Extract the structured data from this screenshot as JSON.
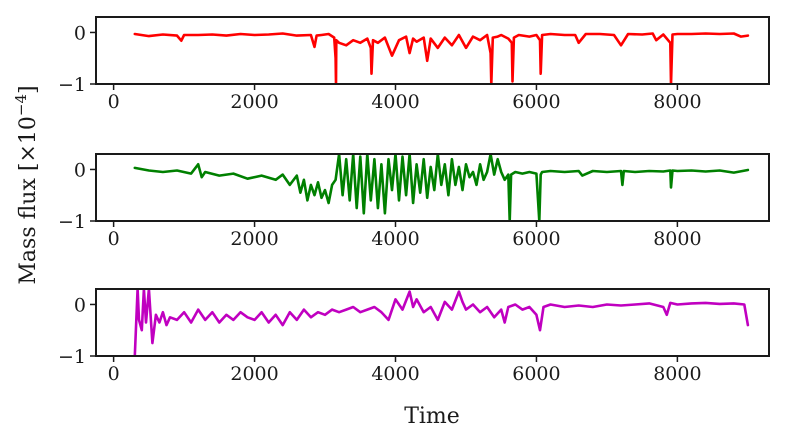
{
  "chart_data": [
    {
      "type": "line",
      "xlim": [
        -250,
        9300
      ],
      "ylim": [
        -1,
        0.3
      ],
      "xticks": [
        0,
        2000,
        4000,
        6000,
        8000
      ],
      "yticks": [
        0,
        -1
      ],
      "xtick_labels": [
        "0",
        "2000",
        "4000",
        "6000",
        "8000"
      ],
      "ytick_labels": [
        "0",
        "−1"
      ],
      "grid": false,
      "series": [
        {
          "color": "#ff0000",
          "x": [
            300,
            500,
            700,
            900,
            960,
            1000,
            1200,
            1400,
            1600,
            1800,
            2000,
            2200,
            2400,
            2600,
            2800,
            2850,
            2880,
            2950,
            3050,
            3130,
            3150,
            3155,
            3160,
            3200,
            3300,
            3400,
            3500,
            3600,
            3650,
            3660,
            3680,
            3750,
            3850,
            3950,
            4050,
            4150,
            4200,
            4250,
            4300,
            4400,
            4450,
            4500,
            4600,
            4700,
            4800,
            4900,
            5000,
            5100,
            5200,
            5300,
            5350,
            5360,
            5380,
            5450,
            5500,
            5600,
            5650,
            5660,
            5680,
            5750,
            5900,
            6000,
            6050,
            6060,
            6080,
            6200,
            6400,
            6550,
            6600,
            6700,
            6900,
            7100,
            7200,
            7300,
            7500,
            7650,
            7700,
            7800,
            7900,
            7910,
            7930,
            8000,
            8200,
            8400,
            8600,
            8800,
            8900,
            9000
          ],
          "y": [
            -0.03,
            -0.07,
            -0.04,
            -0.06,
            -0.16,
            -0.05,
            -0.05,
            -0.04,
            -0.06,
            -0.03,
            -0.05,
            -0.04,
            -0.02,
            -0.06,
            -0.05,
            -0.28,
            -0.06,
            -0.05,
            -0.03,
            -0.1,
            -0.5,
            -1.0,
            -0.15,
            -0.2,
            -0.25,
            -0.15,
            -0.2,
            -0.12,
            -0.3,
            -0.8,
            -0.15,
            -0.2,
            -0.1,
            -0.45,
            -0.15,
            -0.08,
            -0.4,
            -0.12,
            -0.18,
            -0.1,
            -0.55,
            -0.12,
            -0.3,
            -0.1,
            -0.25,
            -0.05,
            -0.3,
            -0.08,
            -0.15,
            -0.05,
            -0.4,
            -1.0,
            -0.1,
            -0.08,
            -0.05,
            -0.12,
            -0.2,
            -0.95,
            -0.1,
            -0.05,
            -0.08,
            -0.05,
            -0.15,
            -0.8,
            -0.05,
            -0.03,
            -0.05,
            -0.05,
            -0.2,
            -0.03,
            -0.03,
            -0.05,
            -0.25,
            -0.03,
            -0.04,
            -0.02,
            -0.15,
            -0.04,
            -0.2,
            -1.0,
            -0.04,
            -0.03,
            -0.03,
            -0.02,
            -0.03,
            -0.02,
            -0.08,
            -0.06
          ]
        }
      ]
    },
    {
      "type": "line",
      "xlim": [
        -250,
        9300
      ],
      "ylim": [
        -1,
        0.3
      ],
      "xticks": [
        0,
        2000,
        4000,
        6000,
        8000
      ],
      "yticks": [
        0,
        -1
      ],
      "xtick_labels": [
        "0",
        "2000",
        "4000",
        "6000",
        "8000"
      ],
      "ytick_labels": [
        "0",
        "−1"
      ],
      "grid": false,
      "series": [
        {
          "color": "#008000",
          "x": [
            300,
            500,
            700,
            900,
            1100,
            1200,
            1250,
            1300,
            1500,
            1700,
            1900,
            2100,
            2300,
            2400,
            2500,
            2600,
            2650,
            2700,
            2750,
            2800,
            2850,
            2900,
            2950,
            3000,
            3050,
            3100,
            3150,
            3200,
            3250,
            3300,
            3350,
            3400,
            3450,
            3500,
            3550,
            3600,
            3650,
            3700,
            3750,
            3800,
            3850,
            3900,
            3950,
            4000,
            4050,
            4100,
            4150,
            4200,
            4250,
            4300,
            4350,
            4400,
            4450,
            4500,
            4550,
            4600,
            4650,
            4700,
            4750,
            4800,
            4850,
            4900,
            4950,
            5000,
            5050,
            5100,
            5150,
            5200,
            5250,
            5300,
            5350,
            5400,
            5450,
            5500,
            5550,
            5600,
            5620,
            5640,
            5700,
            5800,
            5900,
            6000,
            6040,
            6060,
            6080,
            6200,
            6400,
            6600,
            6650,
            6800,
            7000,
            7200,
            7220,
            7240,
            7400,
            7600,
            7800,
            7900,
            7910,
            7930,
            8000,
            8200,
            8400,
            8600,
            8800,
            9000
          ],
          "y": [
            0.03,
            -0.02,
            -0.05,
            -0.02,
            -0.08,
            0.1,
            -0.15,
            -0.05,
            -0.12,
            -0.08,
            -0.18,
            -0.12,
            -0.2,
            -0.1,
            -0.3,
            -0.12,
            -0.45,
            -0.2,
            -0.6,
            -0.3,
            -0.5,
            -0.25,
            -0.55,
            -0.4,
            -0.65,
            -0.3,
            -0.2,
            0.3,
            -0.5,
            0.2,
            -0.6,
            0.3,
            -0.75,
            0.25,
            -0.85,
            0.3,
            -0.6,
            0.2,
            -0.75,
            0.1,
            -0.85,
            0.2,
            -0.4,
            0.3,
            -0.6,
            0.25,
            -0.5,
            0.3,
            -0.65,
            0.1,
            -0.45,
            0.2,
            -0.55,
            0.05,
            -0.4,
            0.3,
            -0.3,
            0.1,
            -0.5,
            0.2,
            -0.3,
            0.05,
            -0.4,
            0.1,
            -0.15,
            -0.05,
            -0.3,
            0.1,
            -0.2,
            -0.05,
            0.3,
            -0.1,
            0.2,
            -0.05,
            -0.2,
            -0.1,
            -1.0,
            -0.1,
            -0.05,
            -0.08,
            -0.05,
            -0.08,
            -1.0,
            -0.1,
            -0.05,
            -0.03,
            -0.05,
            -0.03,
            -0.12,
            -0.03,
            -0.05,
            -0.03,
            -0.3,
            -0.03,
            -0.05,
            -0.03,
            -0.04,
            -0.02,
            -0.35,
            -0.02,
            -0.03,
            -0.02,
            -0.04,
            -0.02,
            -0.06,
            -0.01
          ]
        }
      ]
    },
    {
      "type": "line",
      "xlim": [
        -250,
        9300
      ],
      "ylim": [
        -1,
        0.3
      ],
      "xticks": [
        0,
        2000,
        4000,
        6000,
        8000
      ],
      "yticks": [
        0,
        -1
      ],
      "xtick_labels": [
        "0",
        "2000",
        "4000",
        "6000",
        "8000"
      ],
      "ytick_labels": [
        "0",
        "−1"
      ],
      "grid": false,
      "series": [
        {
          "color": "#c000c0",
          "x": [
            300,
            340,
            360,
            400,
            430,
            460,
            500,
            550,
            600,
            650,
            700,
            750,
            800,
            900,
            1000,
            1100,
            1200,
            1300,
            1400,
            1500,
            1600,
            1700,
            1800,
            1900,
            2000,
            2100,
            2200,
            2300,
            2400,
            2500,
            2600,
            2700,
            2800,
            2900,
            3000,
            3100,
            3200,
            3300,
            3400,
            3500,
            3600,
            3700,
            3800,
            3900,
            4000,
            4100,
            4200,
            4250,
            4300,
            4400,
            4500,
            4600,
            4700,
            4800,
            4900,
            4950,
            5000,
            5100,
            5200,
            5300,
            5400,
            5500,
            5550,
            5600,
            5700,
            5800,
            5900,
            6000,
            6050,
            6100,
            6200,
            6400,
            6600,
            6800,
            7000,
            7200,
            7400,
            7600,
            7800,
            7850,
            7900,
            8000,
            8200,
            8400,
            8600,
            8800,
            8950,
            9000
          ],
          "y": [
            -1.0,
            0.3,
            -0.3,
            -0.5,
            0.3,
            -0.35,
            0.3,
            -0.75,
            -0.2,
            -0.35,
            -0.15,
            -0.4,
            -0.25,
            -0.3,
            -0.15,
            -0.35,
            -0.1,
            -0.3,
            -0.15,
            -0.35,
            -0.2,
            -0.3,
            -0.15,
            -0.25,
            -0.3,
            -0.15,
            -0.35,
            -0.2,
            -0.4,
            -0.15,
            -0.3,
            -0.1,
            -0.25,
            -0.15,
            -0.2,
            -0.1,
            -0.15,
            -0.1,
            -0.05,
            -0.15,
            -0.1,
            -0.05,
            -0.15,
            -0.3,
            0.1,
            -0.1,
            0.25,
            -0.05,
            0.1,
            -0.15,
            -0.05,
            -0.3,
            0.05,
            -0.1,
            0.25,
            0.05,
            -0.1,
            0.0,
            -0.15,
            -0.05,
            -0.25,
            -0.1,
            -0.35,
            -0.05,
            0.0,
            -0.1,
            -0.05,
            -0.2,
            -0.5,
            -0.05,
            0.0,
            -0.05,
            -0.02,
            -0.05,
            0.0,
            -0.02,
            0.0,
            0.02,
            -0.05,
            -0.2,
            0.03,
            0.0,
            0.02,
            0.03,
            0.01,
            0.02,
            0.0,
            -0.4
          ]
        }
      ]
    }
  ],
  "ylabel": "Mass flux   [×10",
  "ylabel_exp": "−4",
  "ylabel_close": "]",
  "xlabel": "Time"
}
